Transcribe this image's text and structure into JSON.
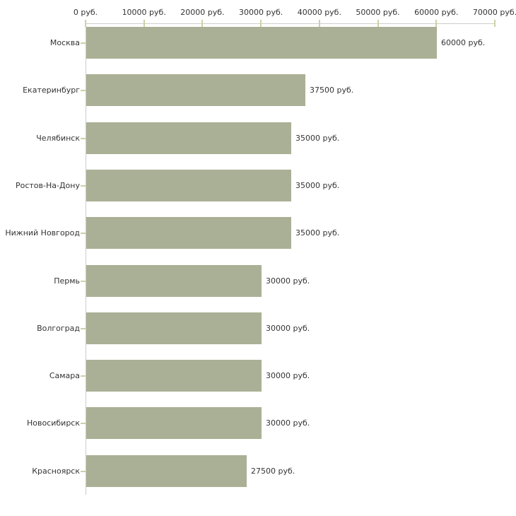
{
  "chart_data": {
    "type": "bar",
    "orientation": "horizontal",
    "title": "",
    "xlabel": "",
    "ylabel": "",
    "unit": "руб.",
    "categories": [
      "Москва",
      "Екатеринбург",
      "Челябинск",
      "Ростов-На-Дону",
      "Нижний Новгород",
      "Пермь",
      "Волгоград",
      "Самара",
      "Новосибирск",
      "Красноярск"
    ],
    "values": [
      60000,
      37500,
      35000,
      35000,
      35000,
      30000,
      30000,
      30000,
      30000,
      27500
    ],
    "value_labels": [
      "60000 руб.",
      "37500 руб.",
      "35000 руб.",
      "35000 руб.",
      "35000 руб.",
      "30000 руб.",
      "30000 руб.",
      "30000 руб.",
      "30000 руб.",
      "27500 руб."
    ],
    "x_ticks": [
      0,
      10000,
      20000,
      30000,
      40000,
      50000,
      60000,
      70000
    ],
    "x_tick_labels": [
      "0 руб.",
      "10000 руб.",
      "20000 руб.",
      "30000 руб.",
      "40000 руб.",
      "50000 руб.",
      "60000 руб.",
      "70000 руб."
    ],
    "xlim": [
      0,
      70000
    ],
    "grid": false,
    "legend": false,
    "axis_position": "top",
    "colors": {
      "bar": "#aab095",
      "axis": "#cccccc",
      "tick": "#cfcfa6",
      "text": "#333333",
      "background": "#ffffff"
    }
  }
}
